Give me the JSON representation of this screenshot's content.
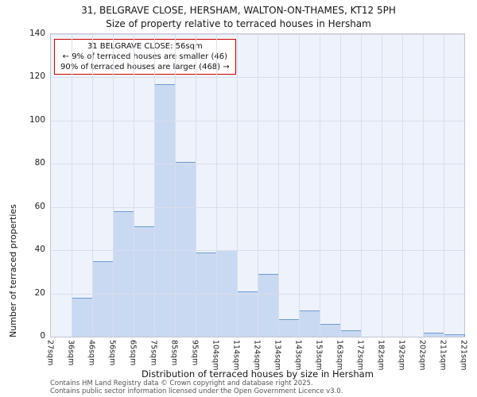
{
  "header": {
    "title": "31, BELGRAVE CLOSE, HERSHAM, WALTON-ON-THAMES, KT12 5PH",
    "subtitle": "Size of property relative to terraced houses in Hersham"
  },
  "chart_data": {
    "type": "bar",
    "title": "31, BELGRAVE CLOSE, HERSHAM, WALTON-ON-THAMES, KT12 5PH",
    "subtitle": "Size of property relative to terraced houses in Hersham",
    "xlabel": "Distribution of terraced houses by size in Hersham",
    "ylabel": "Number of terraced properties",
    "ylim": [
      0,
      140
    ],
    "yticks": [
      0,
      20,
      40,
      60,
      80,
      100,
      120,
      140
    ],
    "grid": true,
    "legend": false,
    "bin_edge_labels": [
      "27sqm",
      "36sqm",
      "46sqm",
      "56sqm",
      "65sqm",
      "75sqm",
      "85sqm",
      "95sqm",
      "104sqm",
      "114sqm",
      "124sqm",
      "134sqm",
      "143sqm",
      "153sqm",
      "163sqm",
      "172sqm",
      "182sqm",
      "192sqm",
      "202sqm",
      "211sqm",
      "221sqm"
    ],
    "values": [
      0,
      18,
      35,
      58,
      51,
      117,
      81,
      39,
      40,
      21,
      29,
      8,
      12,
      6,
      3,
      0,
      0,
      0,
      2,
      1
    ],
    "annotation": {
      "line1": "31 BELGRAVE CLOSE: 56sqm",
      "line2": "← 9% of terraced houses are smaller (46)",
      "line3": "90% of terraced houses are larger (468) →",
      "marker_value": "56sqm",
      "marker_edge_index": 3
    }
  },
  "colors": {
    "bar_fill": "#c9d9f1",
    "bar_border": "#6f9bd1",
    "grid": "#d8deee",
    "plot_background": "#eef2fa",
    "marker_line": "#a42b2b",
    "callout_border": "#cc0000"
  },
  "footer": {
    "line1": "Contains HM Land Registry data © Crown copyright and database right 2025.",
    "line2": "Contains public sector information licensed under the Open Government Licence v3.0."
  }
}
